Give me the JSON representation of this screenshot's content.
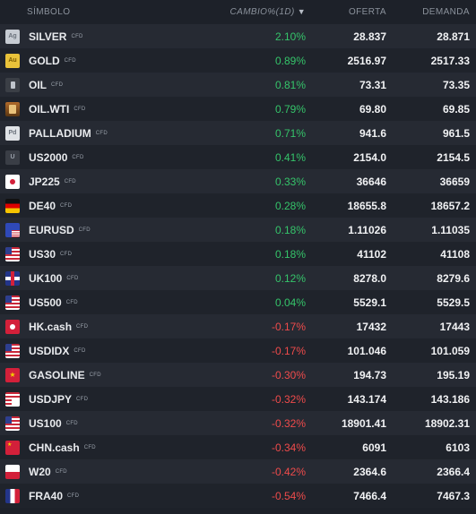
{
  "header": {
    "symbol": "SÍMBOLO",
    "change": "CAMBIO%(1D)",
    "sort_arrow": "▼",
    "bid": "OFERTA",
    "ask": "DEMANDA"
  },
  "colors": {
    "up": "#35c46a",
    "down": "#ef4b4b"
  },
  "rows": [
    {
      "name": "SILVER",
      "tag": "CFD",
      "change": "2.10%",
      "bid": "28.837",
      "ask": "28.871",
      "dir": "up",
      "icon": "silver-icon",
      "cls": "f-silver",
      "glyph": "Ag"
    },
    {
      "name": "GOLD",
      "tag": "CFD",
      "change": "0.89%",
      "bid": "2516.97",
      "ask": "2517.33",
      "dir": "up",
      "icon": "gold-icon",
      "cls": "f-gold",
      "glyph": "Au"
    },
    {
      "name": "OIL",
      "tag": "CFD",
      "change": "0.81%",
      "bid": "73.31",
      "ask": "73.35",
      "dir": "up",
      "icon": "oil-barrel-icon",
      "cls": "f-oil",
      "glyph": ""
    },
    {
      "name": "OIL.WTI",
      "tag": "CFD",
      "change": "0.79%",
      "bid": "69.80",
      "ask": "69.85",
      "dir": "up",
      "icon": "oil-wti-icon",
      "cls": "f-oilwti",
      "glyph": ""
    },
    {
      "name": "PALLADIUM",
      "tag": "CFD",
      "change": "0.71%",
      "bid": "941.6",
      "ask": "961.5",
      "dir": "up",
      "icon": "palladium-icon",
      "cls": "f-pall",
      "glyph": "Pd"
    },
    {
      "name": "US2000",
      "tag": "CFD",
      "change": "0.41%",
      "bid": "2154.0",
      "ask": "2154.5",
      "dir": "up",
      "icon": "us2000-index-icon",
      "cls": "f-us2000",
      "glyph": "U"
    },
    {
      "name": "JP225",
      "tag": "CFD",
      "change": "0.33%",
      "bid": "36646",
      "ask": "36659",
      "dir": "up",
      "icon": "japan-flag-icon",
      "cls": "f-jp",
      "glyph": ""
    },
    {
      "name": "DE40",
      "tag": "CFD",
      "change": "0.28%",
      "bid": "18655.8",
      "ask": "18657.2",
      "dir": "up",
      "icon": "germany-flag-icon",
      "cls": "f-de",
      "glyph": ""
    },
    {
      "name": "EURUSD",
      "tag": "CFD",
      "change": "0.18%",
      "bid": "1.11026",
      "ask": "1.11035",
      "dir": "up",
      "icon": "eu-us-flag-icon",
      "cls": "f-eu",
      "glyph": ""
    },
    {
      "name": "US30",
      "tag": "CFD",
      "change": "0.18%",
      "bid": "41102",
      "ask": "41108",
      "dir": "up",
      "icon": "us-flag-icon",
      "cls": "f-us",
      "glyph": ""
    },
    {
      "name": "UK100",
      "tag": "CFD",
      "change": "0.12%",
      "bid": "8278.0",
      "ask": "8279.6",
      "dir": "up",
      "icon": "uk-flag-icon",
      "cls": "f-uk",
      "glyph": ""
    },
    {
      "name": "US500",
      "tag": "CFD",
      "change": "0.04%",
      "bid": "5529.1",
      "ask": "5529.5",
      "dir": "up",
      "icon": "us-flag-icon",
      "cls": "f-us",
      "glyph": ""
    },
    {
      "name": "HK.cash",
      "tag": "CFD",
      "change": "-0.17%",
      "bid": "17432",
      "ask": "17443",
      "dir": "down",
      "icon": "hong-kong-flag-icon",
      "cls": "f-hk",
      "glyph": ""
    },
    {
      "name": "USDIDX",
      "tag": "CFD",
      "change": "-0.17%",
      "bid": "101.046",
      "ask": "101.059",
      "dir": "down",
      "icon": "us-flag-icon",
      "cls": "f-us",
      "glyph": ""
    },
    {
      "name": "GASOLINE",
      "tag": "CFD",
      "change": "-0.30%",
      "bid": "194.73",
      "ask": "195.19",
      "dir": "down",
      "icon": "gasoline-icon",
      "cls": "f-vn",
      "glyph": ""
    },
    {
      "name": "USDJPY",
      "tag": "CFD",
      "change": "-0.32%",
      "bid": "143.174",
      "ask": "143.186",
      "dir": "down",
      "icon": "us-japan-flag-icon",
      "cls": "f-usjp",
      "glyph": ""
    },
    {
      "name": "US100",
      "tag": "CFD",
      "change": "-0.32%",
      "bid": "18901.41",
      "ask": "18902.31",
      "dir": "down",
      "icon": "us-flag-icon",
      "cls": "f-us",
      "glyph": ""
    },
    {
      "name": "CHN.cash",
      "tag": "CFD",
      "change": "-0.34%",
      "bid": "6091",
      "ask": "6103",
      "dir": "down",
      "icon": "china-flag-icon",
      "cls": "f-cn",
      "glyph": ""
    },
    {
      "name": "W20",
      "tag": "CFD",
      "change": "-0.42%",
      "bid": "2364.6",
      "ask": "2366.4",
      "dir": "down",
      "icon": "poland-flag-icon",
      "cls": "f-pl",
      "glyph": ""
    },
    {
      "name": "FRA40",
      "tag": "CFD",
      "change": "-0.54%",
      "bid": "7466.4",
      "ask": "7467.3",
      "dir": "down",
      "icon": "france-flag-icon",
      "cls": "f-fr",
      "glyph": ""
    }
  ]
}
